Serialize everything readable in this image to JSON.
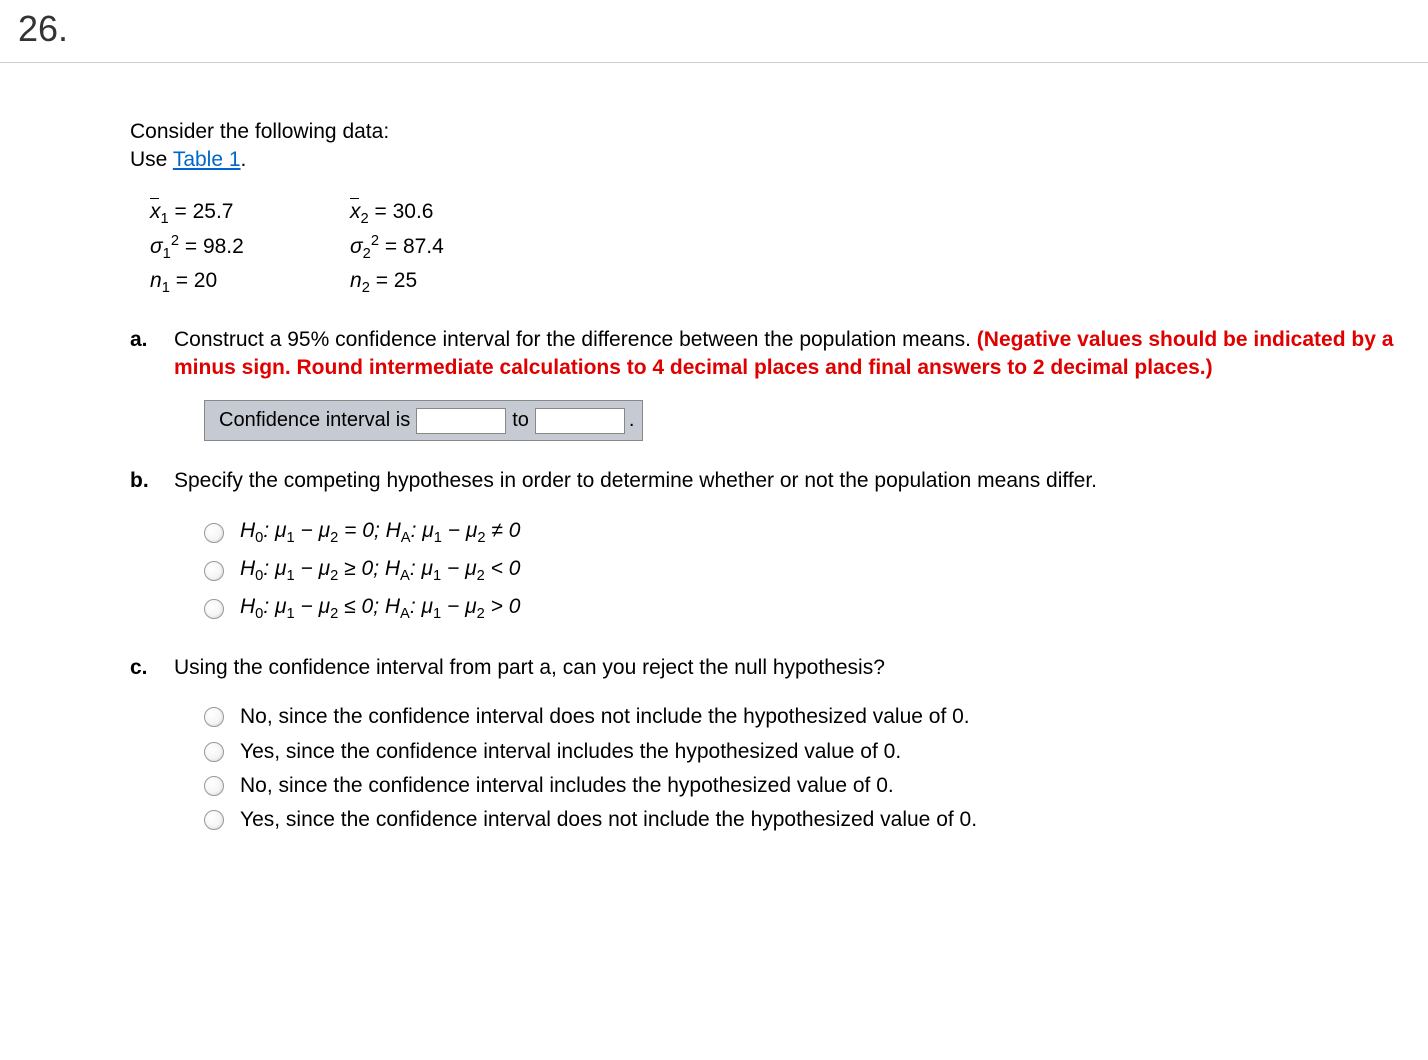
{
  "question_number": "26.",
  "intro_line1": "Consider the following data:",
  "intro_use": "Use ",
  "table_link": "Table 1",
  "intro_period": ".",
  "data": {
    "xbar1_label": "x",
    "xbar1_sub": "1",
    "xbar1_val": " = 25.7",
    "xbar2_label": "x",
    "xbar2_sub": "2",
    "xbar2_val": " = 30.6",
    "sigma1_base": "σ",
    "sigma1_sub": "1",
    "sigma1_sup": "2",
    "sigma1_val": "  = 98.2",
    "sigma2_base": "σ",
    "sigma2_sub": "2",
    "sigma2_sup": "2",
    "sigma2_val": "  = 87.4",
    "n1_base": "n",
    "n1_sub": "1",
    "n1_val": " = 20",
    "n2_base": "n",
    "n2_sub": "2",
    "n2_val": " = 25"
  },
  "parts": {
    "a": {
      "marker": "a.",
      "text_before": "Construct a 95% confidence interval for the difference between the population means. ",
      "red": "(Negative values should be indicated by a minus sign. Round intermediate calculations to 4 decimal places and final answers to 2 decimal places.)",
      "ci_label": "Confidence interval is",
      "ci_to": "to",
      "ci_end": "."
    },
    "b": {
      "marker": "b.",
      "text": "Specify the competing hypotheses in order to determine whether or not the population means differ.",
      "opts": {
        "h0": "H",
        "zero": "0",
        "ha": "H",
        "a": "A",
        "mu": "μ",
        "one": "1",
        "two": "2",
        "op1_rel1": " = 0; ",
        "op1_rel2": " ≠ 0",
        "op2_rel1": " ≥ 0; ",
        "op2_rel2": " < 0",
        "op3_rel1": " ≤ 0; ",
        "op3_rel2": " > 0",
        "colon": ": ",
        "minus": " − "
      }
    },
    "c": {
      "marker": "c.",
      "text": "Using the confidence interval from part a, can you reject the null hypothesis?",
      "opts": [
        "No, since the confidence interval does not include the hypothesized value of 0.",
        "Yes, since the confidence interval includes the hypothesized value of 0.",
        "No, since the confidence interval includes the hypothesized value of 0.",
        "Yes, since the confidence interval does not include the hypothesized value of 0."
      ]
    }
  }
}
